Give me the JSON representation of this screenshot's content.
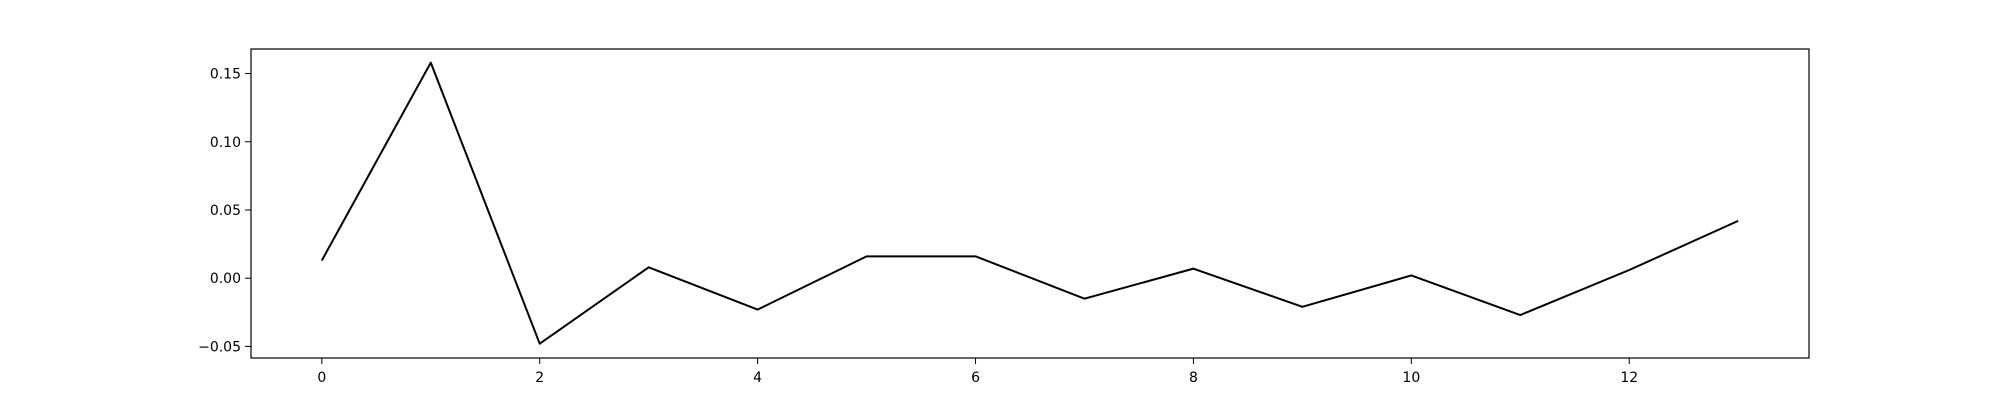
{
  "chart_data": {
    "type": "line",
    "title": "",
    "xlabel": "",
    "ylabel": "",
    "x": [
      0,
      1,
      2,
      3,
      4,
      5,
      6,
      7,
      8,
      9,
      10,
      11,
      12,
      13
    ],
    "series": [
      {
        "values": [
          0.013,
          0.158,
          -0.048,
          0.008,
          -0.023,
          0.016,
          0.016,
          -0.015,
          0.007,
          -0.021,
          0.002,
          -0.027,
          0.006,
          0.042
        ],
        "color": "#000000"
      }
    ],
    "xlim": [
      -0.65,
      13.65
    ],
    "ylim": [
      -0.0585,
      0.168
    ],
    "xticks": [
      0,
      2,
      4,
      6,
      8,
      10,
      12
    ],
    "xtick_labels": [
      "0",
      "2",
      "4",
      "6",
      "8",
      "10",
      "12"
    ],
    "yticks": [
      -0.05,
      0.0,
      0.05,
      0.1,
      0.15
    ],
    "ytick_labels": [
      "−0.05",
      "0.00",
      "0.05",
      "0.10",
      "0.15"
    ],
    "grid": false,
    "legend": "none"
  }
}
